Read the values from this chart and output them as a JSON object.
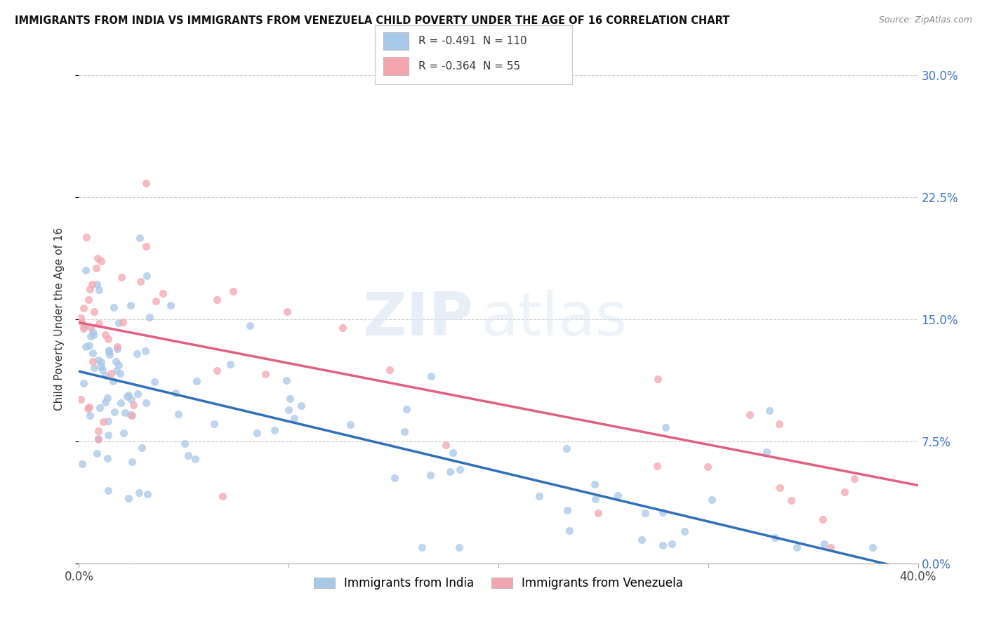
{
  "title": "IMMIGRANTS FROM INDIA VS IMMIGRANTS FROM VENEZUELA CHILD POVERTY UNDER THE AGE OF 16 CORRELATION CHART",
  "source": "Source: ZipAtlas.com",
  "ylabel": "Child Poverty Under the Age of 16",
  "xlim": [
    0.0,
    0.4
  ],
  "ylim": [
    0.0,
    0.3
  ],
  "yticks": [
    0.0,
    0.075,
    0.15,
    0.225,
    0.3
  ],
  "yticklabels_right": [
    "0.0%",
    "7.5%",
    "15.0%",
    "22.5%",
    "30.0%"
  ],
  "india_color": "#a8c8e8",
  "venezuela_color": "#f4a6b0",
  "india_line_color": "#3070b8",
  "venezuela_line_color": "#e06080",
  "india_R": -0.491,
  "india_N": 110,
  "venezuela_R": -0.364,
  "venezuela_N": 55,
  "watermark_zip": "ZIP",
  "watermark_atlas": "atlas",
  "legend_label_india": "Immigrants from India",
  "legend_label_venezuela": "Immigrants from Venezuela",
  "india_line_x0": 0.0,
  "india_line_y0": 0.118,
  "india_line_x1": 0.4,
  "india_line_y1": -0.005,
  "venezuela_line_x0": 0.0,
  "venezuela_line_y0": 0.148,
  "venezuela_line_x1": 0.4,
  "venezuela_line_y1": 0.048
}
